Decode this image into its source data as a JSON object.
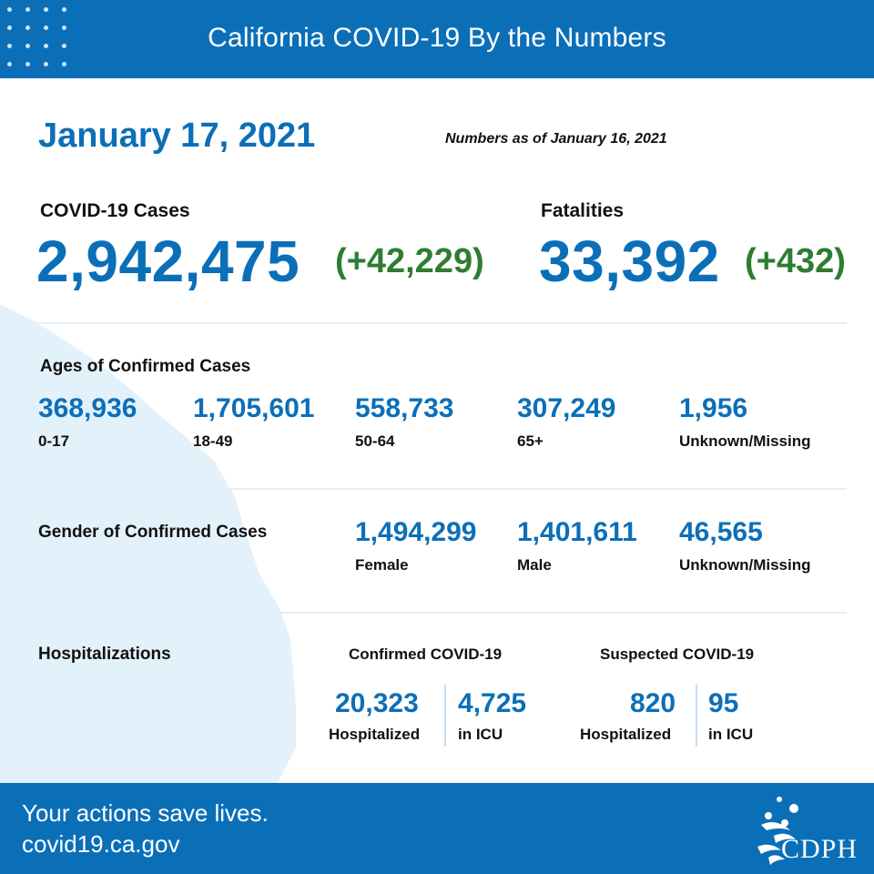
{
  "header": {
    "title": "California COVID-19 By the Numbers"
  },
  "date": "January 17, 2021",
  "as_of": "Numbers as of January 16, 2021",
  "cases": {
    "label": "COVID-19 Cases",
    "value": "2,942,475",
    "delta": "(+42,229)"
  },
  "fatalities": {
    "label": "Fatalities",
    "value": "33,392",
    "delta": "(+432)"
  },
  "ages": {
    "title": "Ages of Confirmed Cases",
    "groups": [
      {
        "value": "368,936",
        "label": "0-17"
      },
      {
        "value": "1,705,601",
        "label": "18-49"
      },
      {
        "value": "558,733",
        "label": "50-64"
      },
      {
        "value": "307,249",
        "label": "65+"
      },
      {
        "value": "1,956",
        "label": "Unknown/Missing"
      }
    ]
  },
  "gender": {
    "title": "Gender of Confirmed Cases",
    "groups": [
      {
        "value": "1,494,299",
        "label": "Female"
      },
      {
        "value": "1,401,611",
        "label": "Male"
      },
      {
        "value": "46,565",
        "label": "Unknown/Missing"
      }
    ]
  },
  "hospitalizations": {
    "title": "Hospitalizations",
    "confirmed": {
      "title": "Confirmed COVID-19",
      "hospitalized": "20,323",
      "hospitalized_label": "Hospitalized",
      "icu": "4,725",
      "icu_label": "in ICU"
    },
    "suspected": {
      "title": "Suspected COVID-19",
      "hospitalized": "820",
      "hospitalized_label": "Hospitalized",
      "icu": "95",
      "icu_label": "in ICU"
    }
  },
  "footer": {
    "line1": "Your actions save lives.",
    "line2": "covid19.ca.gov"
  },
  "logo": {
    "text": "CDPH"
  },
  "colors": {
    "brand_blue": "#0b6fb8",
    "delta_green": "#2e7d32",
    "map_tint": "#e3f1fb"
  }
}
